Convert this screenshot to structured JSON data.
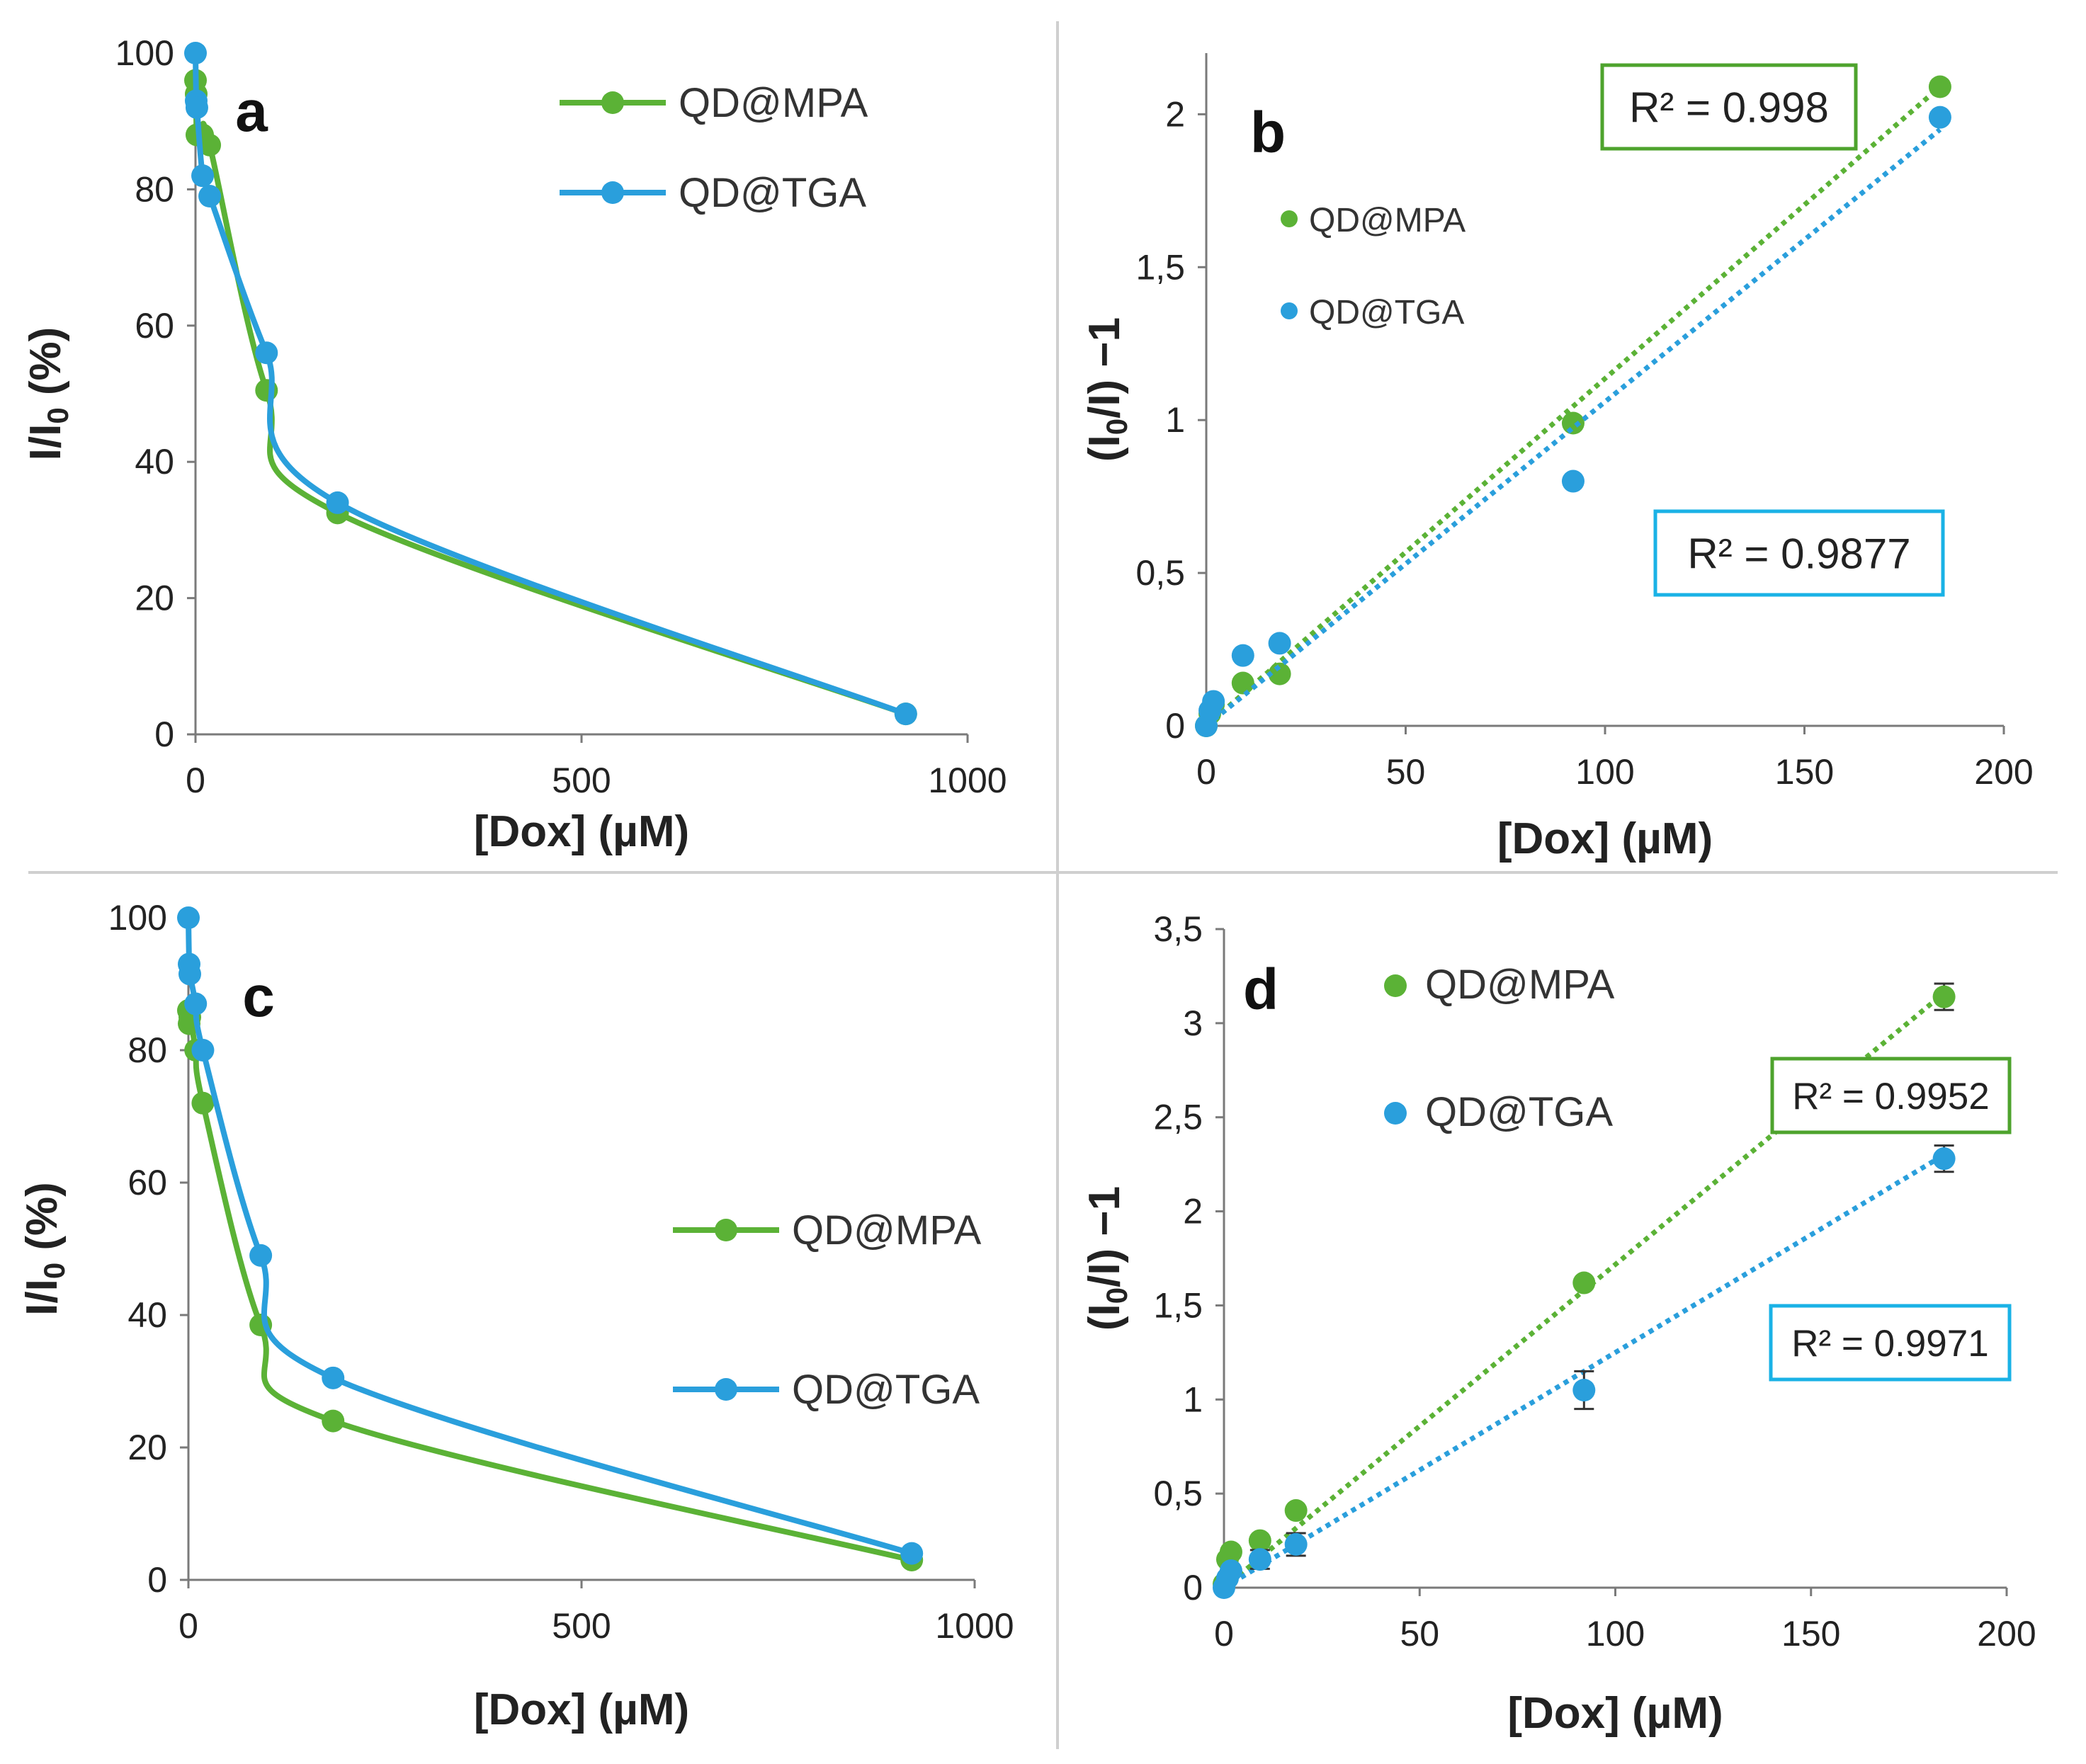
{
  "colors": {
    "mpa": "#5bb236",
    "tga": "#2a9fdc",
    "mpa_box": "#4ea32d",
    "tga_box": "#1ab2e6",
    "axis": "#7a7a7a",
    "divider": "#cfcfcf"
  },
  "chart_data": [
    {
      "panel": "a",
      "type": "line",
      "letter": "a",
      "xlabel": "[Dox] (µM)",
      "ylabel_parts": {
        "pre": "I/I",
        "sub": "0",
        "post": " (%)"
      },
      "xlim": [
        0,
        1000
      ],
      "ylim": [
        0,
        100
      ],
      "xticks": [
        0,
        500,
        1000
      ],
      "xtick_labels": [
        "0",
        "500",
        "1000"
      ],
      "yticks": [
        0,
        20,
        40,
        60,
        80,
        100
      ],
      "ytick_labels": [
        "0",
        "20",
        "40",
        "60",
        "80",
        "100"
      ],
      "legend": [
        "QD@MPA",
        "QD@TGA"
      ],
      "legend_position": "top-right",
      "series": [
        {
          "name": "QD@MPA",
          "color_key": "mpa",
          "x": [
            0,
            0.9,
            1.8,
            9.2,
            18.4,
            92,
            184,
            920
          ],
          "y": [
            96,
            94,
            88,
            88,
            86.5,
            50.5,
            32.5,
            3
          ]
        },
        {
          "name": "QD@TGA",
          "color_key": "tga",
          "x": [
            0,
            0.9,
            1.8,
            9.2,
            18.4,
            92,
            184,
            920
          ],
          "y": [
            100,
            93,
            92,
            82,
            79,
            56,
            34,
            3
          ]
        }
      ]
    },
    {
      "panel": "b",
      "type": "scatter",
      "letter": "b",
      "xlabel": "[Dox] (µM)",
      "ylabel_parts": {
        "pre": "(I",
        "sub": "0",
        "post": "/I) −1"
      },
      "xlim": [
        0,
        200
      ],
      "ylim": [
        0,
        2.2
      ],
      "xticks": [
        0,
        50,
        100,
        150,
        200
      ],
      "xtick_labels": [
        "0",
        "50",
        "100",
        "150",
        "200"
      ],
      "yticks": [
        0,
        0.5,
        1,
        1.5,
        2
      ],
      "ytick_labels": [
        "0",
        "0,5",
        "1",
        "1,5",
        "2"
      ],
      "legend": [
        "QD@MPA",
        "QD@TGA"
      ],
      "legend_position": "top-left",
      "series": [
        {
          "name": "QD@MPA",
          "color_key": "mpa",
          "x": [
            0,
            0.9,
            1.8,
            9.2,
            18.4,
            92,
            184
          ],
          "y": [
            0,
            0.04,
            0.07,
            0.14,
            0.17,
            0.99,
            2.09
          ],
          "fit_end_y": 2.09
        },
        {
          "name": "QD@TGA",
          "color_key": "tga",
          "x": [
            0,
            0.9,
            1.8,
            9.2,
            18.4,
            92,
            184
          ],
          "y": [
            0,
            0.05,
            0.08,
            0.23,
            0.27,
            0.8,
            1.99
          ],
          "fit_end_y": 1.95
        }
      ],
      "annotations": [
        {
          "text": "R² = 0.998",
          "color_key": "mpa_box"
        },
        {
          "text": "R² = 0.9877",
          "color_key": "tga_box"
        }
      ]
    },
    {
      "panel": "c",
      "type": "line",
      "letter": "c",
      "xlabel": "[Dox] (µM)",
      "ylabel_parts": {
        "pre": "I/I",
        "sub": "0",
        "post": " (%)"
      },
      "xlim": [
        0,
        1000
      ],
      "ylim": [
        0,
        100
      ],
      "xticks": [
        0,
        500,
        1000
      ],
      "xtick_labels": [
        "0",
        "500",
        "1000"
      ],
      "yticks": [
        0,
        20,
        40,
        60,
        80,
        100
      ],
      "ytick_labels": [
        "0",
        "20",
        "40",
        "60",
        "80",
        "100"
      ],
      "legend": [
        "QD@MPA",
        "QD@TGA"
      ],
      "legend_position": "right",
      "series": [
        {
          "name": "QD@MPA",
          "color_key": "mpa",
          "x": [
            0,
            0.9,
            1.8,
            9.2,
            18.4,
            92,
            184,
            920
          ],
          "y": [
            86,
            84,
            85,
            80,
            72,
            38.5,
            24,
            3
          ]
        },
        {
          "name": "QD@TGA",
          "color_key": "tga",
          "x": [
            0,
            0.9,
            1.8,
            9.2,
            18.4,
            92,
            184,
            920
          ],
          "y": [
            100,
            93,
            91.5,
            87,
            80,
            49,
            30.5,
            4
          ]
        }
      ]
    },
    {
      "panel": "d",
      "type": "scatter",
      "letter": "d",
      "xlabel": "[Dox] (µM)",
      "ylabel_parts": {
        "pre": "(I",
        "sub": "0",
        "post": "/I) −1"
      },
      "xlim": [
        0,
        200
      ],
      "ylim": [
        0,
        3.5
      ],
      "xticks": [
        0,
        50,
        100,
        150,
        200
      ],
      "xtick_labels": [
        "0",
        "50",
        "100",
        "150",
        "200"
      ],
      "yticks": [
        0,
        0.5,
        1,
        1.5,
        2,
        2.5,
        3,
        3.5
      ],
      "ytick_labels": [
        "0",
        "0,5",
        "1",
        "1,5",
        "2",
        "2,5",
        "3",
        "3,5"
      ],
      "legend": [
        "QD@MPA",
        "QD@TGA"
      ],
      "legend_position": "top-left",
      "series": [
        {
          "name": "QD@MPA",
          "color_key": "mpa",
          "x": [
            0,
            0.9,
            1.8,
            9.2,
            18.4,
            92,
            184
          ],
          "y": [
            0.02,
            0.15,
            0.19,
            0.25,
            0.41,
            1.62,
            3.14
          ],
          "err": [
            0,
            0,
            0,
            0,
            0,
            0,
            0.07
          ],
          "fit_end_y": 3.16
        },
        {
          "name": "QD@TGA",
          "color_key": "tga",
          "x": [
            0,
            0.9,
            1.8,
            9.2,
            18.4,
            92,
            184
          ],
          "y": [
            0,
            0.05,
            0.09,
            0.15,
            0.23,
            1.05,
            2.28
          ],
          "err": [
            0,
            0,
            0,
            0.05,
            0.06,
            0.1,
            0.07
          ],
          "fit_end_y": 2.3
        }
      ],
      "annotations": [
        {
          "text": "R² = 0.9952",
          "color_key": "mpa_box"
        },
        {
          "text": "R² = 0.9971",
          "color_key": "tga_box"
        }
      ]
    }
  ]
}
